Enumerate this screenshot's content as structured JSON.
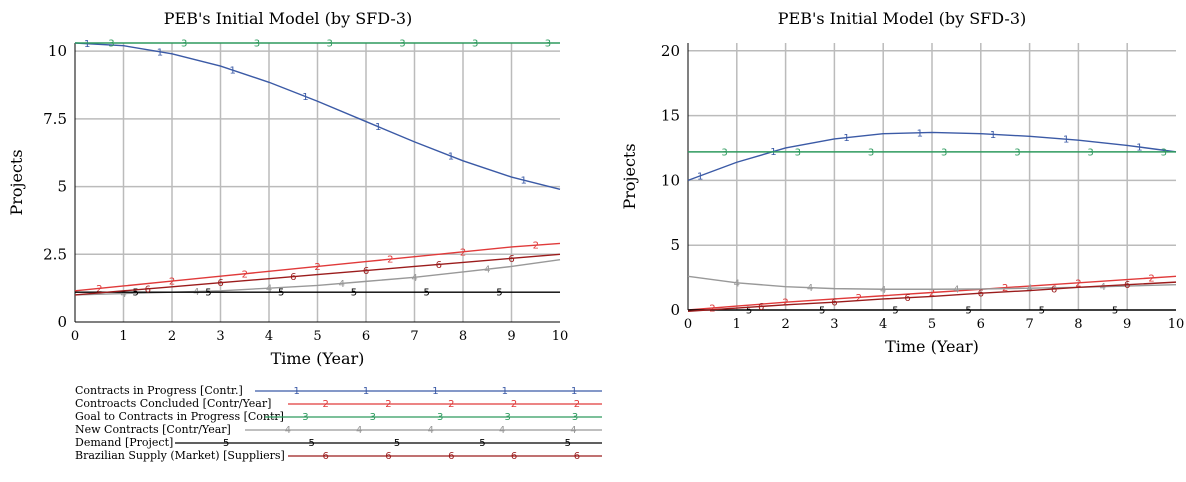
{
  "colors": {
    "s1": "#3b5aa6",
    "s2": "#e03a3a",
    "s3": "#2e9a5e",
    "s4": "#999999",
    "s5": "#000000",
    "s6": "#9b1c1c",
    "grid": "#bbbbbb"
  },
  "legend": [
    {
      "label": "Contracts in Progress [Contr.]",
      "marker": "1",
      "color": "#3b5aa6"
    },
    {
      "label": "Controacts Concluded [Contr/Year]",
      "marker": "2",
      "color": "#e03a3a"
    },
    {
      "label": "Goal to Contracts in Progress [Contr]",
      "marker": "3",
      "color": "#2e9a5e"
    },
    {
      "label": "New Contracts [Contr/Year]",
      "marker": "4",
      "color": "#999999"
    },
    {
      "label": "Demand [Project]",
      "marker": "5",
      "color": "#000000"
    },
    {
      "label": "Brazilian Supply (Market) [Suppliers]",
      "marker": "6",
      "color": "#9b1c1c"
    }
  ],
  "chart_data": [
    {
      "type": "line",
      "title": "PEB's Initial Model (by SFD-3)",
      "xlabel": "Time (Year)",
      "ylabel": "Projects",
      "xlim": [
        0,
        10
      ],
      "ylim": [
        0,
        10.3
      ],
      "xticks": [
        "0",
        "1",
        "2",
        "3",
        "4",
        "5",
        "6",
        "7",
        "8",
        "9",
        "10"
      ],
      "yticks": [
        {
          "v": 0,
          "label": "0"
        },
        {
          "v": 2.5,
          "label": "2.5"
        },
        {
          "v": 5,
          "label": "5"
        },
        {
          "v": 7.5,
          "label": "7.5"
        },
        {
          "v": 10,
          "label": "10"
        }
      ],
      "grid": true,
      "x": [
        0,
        1,
        2,
        3,
        4,
        5,
        6,
        7,
        8,
        9,
        10
      ],
      "series": [
        {
          "marker": "1",
          "values": [
            10.3,
            10.2,
            9.9,
            9.45,
            8.85,
            8.15,
            7.4,
            6.65,
            5.95,
            5.35,
            4.9
          ]
        },
        {
          "marker": "2",
          "values": [
            1.15,
            1.33,
            1.51,
            1.69,
            1.87,
            2.05,
            2.23,
            2.41,
            2.59,
            2.77,
            2.9
          ]
        },
        {
          "marker": "3",
          "values": [
            10.3,
            10.3,
            10.3,
            10.3,
            10.3,
            10.3,
            10.3,
            10.3,
            10.3,
            10.3,
            10.3
          ]
        },
        {
          "marker": "4",
          "values": [
            1.0,
            1.05,
            1.1,
            1.15,
            1.25,
            1.35,
            1.5,
            1.65,
            1.85,
            2.05,
            2.3
          ]
        },
        {
          "marker": "5",
          "values": [
            1.1,
            1.1,
            1.1,
            1.1,
            1.1,
            1.1,
            1.1,
            1.1,
            1.1,
            1.1,
            1.1
          ]
        },
        {
          "marker": "6",
          "values": [
            1.0,
            1.15,
            1.3,
            1.45,
            1.6,
            1.75,
            1.9,
            2.05,
            2.2,
            2.35,
            2.5
          ]
        }
      ]
    },
    {
      "type": "line",
      "title": "PEB's Initial Model (by SFD-3)",
      "xlabel": "Time (Year)",
      "ylabel": "Projects",
      "xlim": [
        0,
        10
      ],
      "ylim": [
        0,
        20.6
      ],
      "xticks": [
        "0",
        "1",
        "2",
        "3",
        "4",
        "5",
        "6",
        "7",
        "8",
        "9",
        "10"
      ],
      "yticks": [
        {
          "v": 0,
          "label": "0"
        },
        {
          "v": 5,
          "label": "5"
        },
        {
          "v": 10,
          "label": "10"
        },
        {
          "v": 15,
          "label": "15"
        },
        {
          "v": 20,
          "label": "20"
        }
      ],
      "grid": true,
      "x": [
        0,
        1,
        2,
        3,
        4,
        5,
        6,
        7,
        8,
        9,
        10
      ],
      "series": [
        {
          "marker": "1",
          "values": [
            10.0,
            11.4,
            12.5,
            13.2,
            13.6,
            13.7,
            13.6,
            13.4,
            13.1,
            12.7,
            12.2
          ]
        },
        {
          "marker": "2",
          "values": [
            0.0,
            0.3,
            0.6,
            0.85,
            1.1,
            1.35,
            1.6,
            1.85,
            2.1,
            2.35,
            2.6
          ]
        },
        {
          "marker": "3",
          "values": [
            12.2,
            12.2,
            12.2,
            12.2,
            12.2,
            12.2,
            12.2,
            12.2,
            12.2,
            12.2,
            12.2
          ]
        },
        {
          "marker": "4",
          "values": [
            2.6,
            2.1,
            1.8,
            1.65,
            1.6,
            1.6,
            1.62,
            1.68,
            1.75,
            1.85,
            1.95
          ]
        },
        {
          "marker": "5",
          "values": [
            0.0,
            0.0,
            0.0,
            0.0,
            0.0,
            0.0,
            0.0,
            0.0,
            0.0,
            0.0,
            0.0
          ]
        },
        {
          "marker": "6",
          "values": [
            -0.1,
            0.15,
            0.4,
            0.6,
            0.85,
            1.05,
            1.3,
            1.5,
            1.75,
            1.95,
            2.15
          ]
        }
      ]
    }
  ]
}
